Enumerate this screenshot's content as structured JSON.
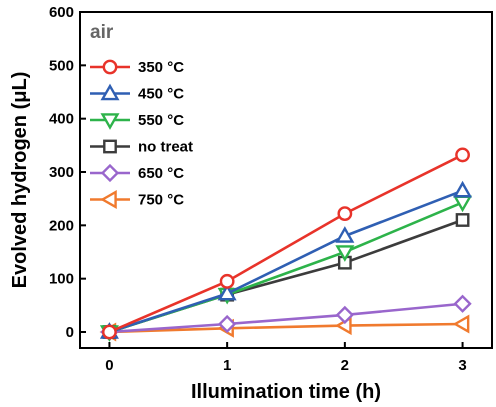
{
  "chart_data": {
    "type": "line",
    "title": "",
    "annotation": "air",
    "xlabel": "Illumination time (h)",
    "ylabel": "Evolved hydrogen (μL)",
    "x": [
      0,
      1,
      2,
      3
    ],
    "xlim": [
      -0.25,
      3.25
    ],
    "ylim": [
      -30,
      600
    ],
    "xticks": [
      "0",
      "1",
      "2",
      "3"
    ],
    "yticks": [
      "0",
      "100",
      "200",
      "300",
      "400",
      "500",
      "600"
    ],
    "grid": false,
    "legend_position": "top-left",
    "series": [
      {
        "name": "350 °C",
        "color": "#e8332a",
        "marker": "circle",
        "values": [
          0,
          95,
          222,
          332
        ]
      },
      {
        "name": "450 °C",
        "color": "#2f5fb3",
        "marker": "triangle-up",
        "values": [
          0,
          72,
          180,
          265
        ]
      },
      {
        "name": "550 °C",
        "color": "#2db34a",
        "marker": "triangle-down",
        "values": [
          0,
          70,
          150,
          243
        ]
      },
      {
        "name": "no treat",
        "color": "#3c3c3c",
        "marker": "square",
        "values": [
          0,
          70,
          130,
          210
        ]
      },
      {
        "name": "650 °C",
        "color": "#9966cc",
        "marker": "diamond",
        "values": [
          0,
          15,
          32,
          53
        ]
      },
      {
        "name": "750 °C",
        "color": "#f07a2e",
        "marker": "triangle-left",
        "values": [
          0,
          7,
          12,
          15
        ]
      }
    ]
  }
}
